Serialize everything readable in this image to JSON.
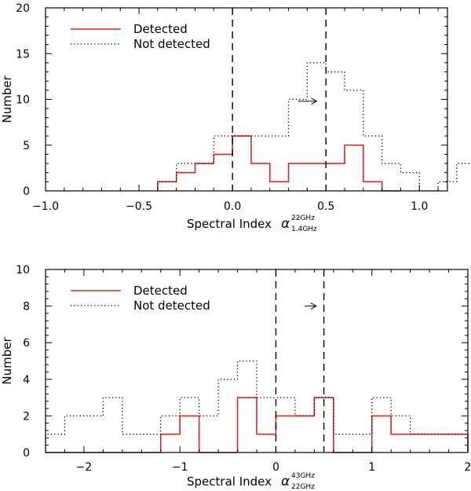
{
  "chart_data": [
    {
      "type": "histogram",
      "xlabel": "Spectral Index",
      "xlabel_symbol": "α",
      "xlabel_sup": "22GHz",
      "xlabel_sub": "1.4GHz",
      "ylabel": "Number",
      "xlim": [
        -1.0,
        1.15
      ],
      "ylim": [
        0,
        20
      ],
      "xticks": [
        -1.0,
        -0.5,
        0.0,
        0.5,
        1.0
      ],
      "xtick_labels": [
        "−1.0",
        "−0.5",
        "0.0",
        "0.5",
        "1.0"
      ],
      "yticks": [
        0,
        5,
        10,
        15,
        20
      ],
      "ytick_labels": [
        "0",
        "5",
        "10",
        "15",
        "20"
      ],
      "bin_start": -0.4,
      "bin_width": 0.1,
      "series": [
        {
          "name": "Detected",
          "color": "#e0261f",
          "style": "solid",
          "values": [
            1,
            2,
            3,
            4,
            6,
            3,
            1,
            3,
            3,
            3,
            5,
            1,
            0
          ]
        },
        {
          "name": "Not detected",
          "color": "#000000",
          "style": "dotted",
          "values": [
            1,
            3,
            3,
            6,
            6,
            6,
            6,
            10,
            14,
            13,
            11,
            6,
            3,
            2,
            0,
            1,
            3,
            0
          ]
        }
      ],
      "vlines": [
        0.0,
        0.5
      ],
      "arrow": {
        "from": [
          0.35,
          9.8
        ],
        "to": [
          0.45,
          9.8
        ]
      },
      "legend_position": "top-left"
    },
    {
      "type": "histogram",
      "xlabel": "Spectral Index",
      "xlabel_symbol": "α",
      "xlabel_sup": "43GHz",
      "xlabel_sub": "22GHz",
      "ylabel": "Number",
      "xlim": [
        -2.4,
        2.0
      ],
      "ylim": [
        0,
        10
      ],
      "xticks": [
        -2,
        -1,
        0,
        1,
        2
      ],
      "xtick_labels": [
        "−2",
        "−1",
        "0",
        "1",
        "2"
      ],
      "yticks": [
        0,
        2,
        4,
        6,
        8,
        10
      ],
      "ytick_labels": [
        "0",
        "2",
        "4",
        "6",
        "8",
        "10"
      ],
      "bin_start": -2.4,
      "bin_width": 0.2,
      "series": [
        {
          "name": "Detected",
          "color": "#e0261f",
          "style": "solid",
          "values": [
            0,
            0,
            0,
            0,
            0,
            0,
            1,
            2,
            0,
            0,
            3,
            1,
            2,
            2,
            3,
            0,
            0,
            2,
            1,
            1,
            1,
            1
          ]
        },
        {
          "name": "Not detected",
          "color": "#000000",
          "style": "dotted",
          "values": [
            1,
            2,
            2,
            3,
            1,
            1,
            2,
            3,
            2,
            4,
            5,
            3,
            3,
            2,
            3,
            1,
            1,
            3,
            2,
            1,
            1,
            1
          ]
        }
      ],
      "vlines": [
        0.0,
        0.5
      ],
      "arrow": {
        "from": [
          0.3,
          8.0
        ],
        "to": [
          0.42,
          8.0
        ]
      },
      "legend_position": "top-left"
    }
  ]
}
